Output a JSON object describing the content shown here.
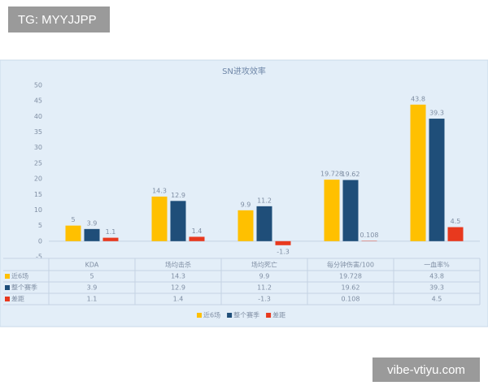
{
  "watermarks": {
    "top": "TG: MYYJJPP",
    "bottom": "vibe-vtiyu.com"
  },
  "chart_data": {
    "type": "bar",
    "title": "SN进攻效率",
    "categories": [
      "KDA",
      "场均击杀",
      "场均死亡",
      "每分钟伤害/100",
      "一血率%"
    ],
    "series": [
      {
        "name": "近6场",
        "color": "#ffc000",
        "values": [
          5,
          14.3,
          9.9,
          19.728,
          43.8
        ]
      },
      {
        "name": "整个赛季",
        "color": "#1f4e79",
        "values": [
          3.9,
          12.9,
          11.2,
          19.62,
          39.3
        ]
      },
      {
        "name": "差距",
        "color": "#e8391e",
        "values": [
          1.1,
          1.4,
          -1.3,
          0.108,
          4.5
        ]
      }
    ],
    "ylim": [
      -5,
      50
    ],
    "yticks": [
      -5,
      0,
      5,
      10,
      15,
      20,
      25,
      30,
      35,
      40,
      45,
      50
    ],
    "grid": false
  }
}
